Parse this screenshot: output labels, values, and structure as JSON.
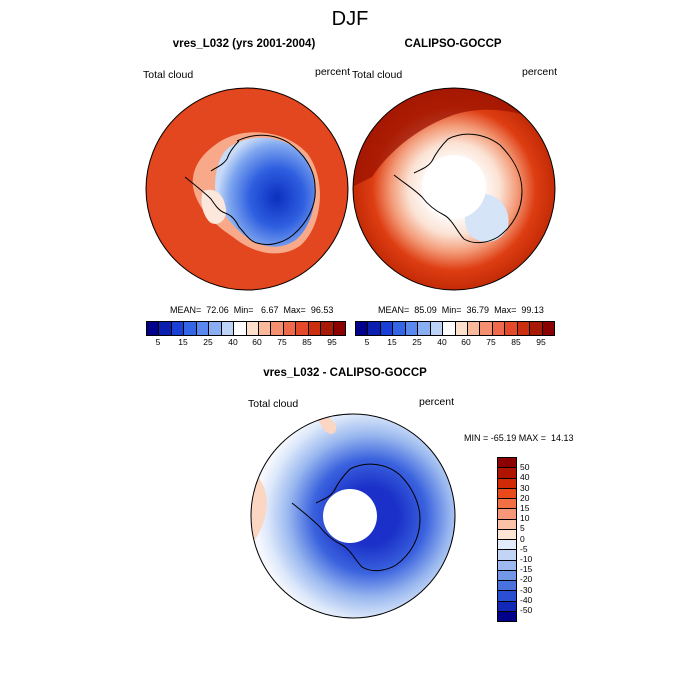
{
  "main_title": "DJF",
  "panels": [
    {
      "title": "vres_L032 (yrs 2001-2004)",
      "left_label": "Total cloud",
      "right_label": "percent",
      "stats": "MEAN=  72.06  Min=   6.67  Max=  96.53"
    },
    {
      "title": "CALIPSO-GOCCP",
      "left_label": "Total cloud",
      "right_label": "percent",
      "stats": "MEAN=  85.09  Min=  36.79  Max=  99.13"
    },
    {
      "title": "vres_L032 - CALIPSO-GOCCP",
      "left_label": "Total cloud",
      "right_label": "percent",
      "stats": "MIN = -65.19 MAX =  14.13"
    }
  ],
  "colorbar_top": {
    "labels": [
      "5",
      "15",
      "25",
      "40",
      "60",
      "75",
      "85",
      "95"
    ],
    "colors": [
      "#00008b",
      "#0a1fb0",
      "#1a3fd6",
      "#3366e6",
      "#5a88ee",
      "#8aaef2",
      "#bcd2f7",
      "#ffffff",
      "#fde0cc",
      "#f9b99a",
      "#f49070",
      "#ee6a4a",
      "#e44a2a",
      "#cc2f10",
      "#a81a05",
      "#8b0000"
    ]
  },
  "colorbar_diff": {
    "labels": [
      "50",
      "40",
      "30",
      "20",
      "15",
      "10",
      "5",
      "0",
      "-5",
      "-10",
      "-15",
      "-20",
      "-30",
      "-40",
      "-50"
    ],
    "colors": [
      "#8b0000",
      "#b01400",
      "#d12a06",
      "#e84a1c",
      "#f27044",
      "#f6977a",
      "#fac3a8",
      "#fde5d6",
      "#e3ecfb",
      "#c3d5f6",
      "#9db9f0",
      "#7297e8",
      "#4a72df",
      "#2a4fd3",
      "#1228b8",
      "#00008b"
    ]
  }
}
